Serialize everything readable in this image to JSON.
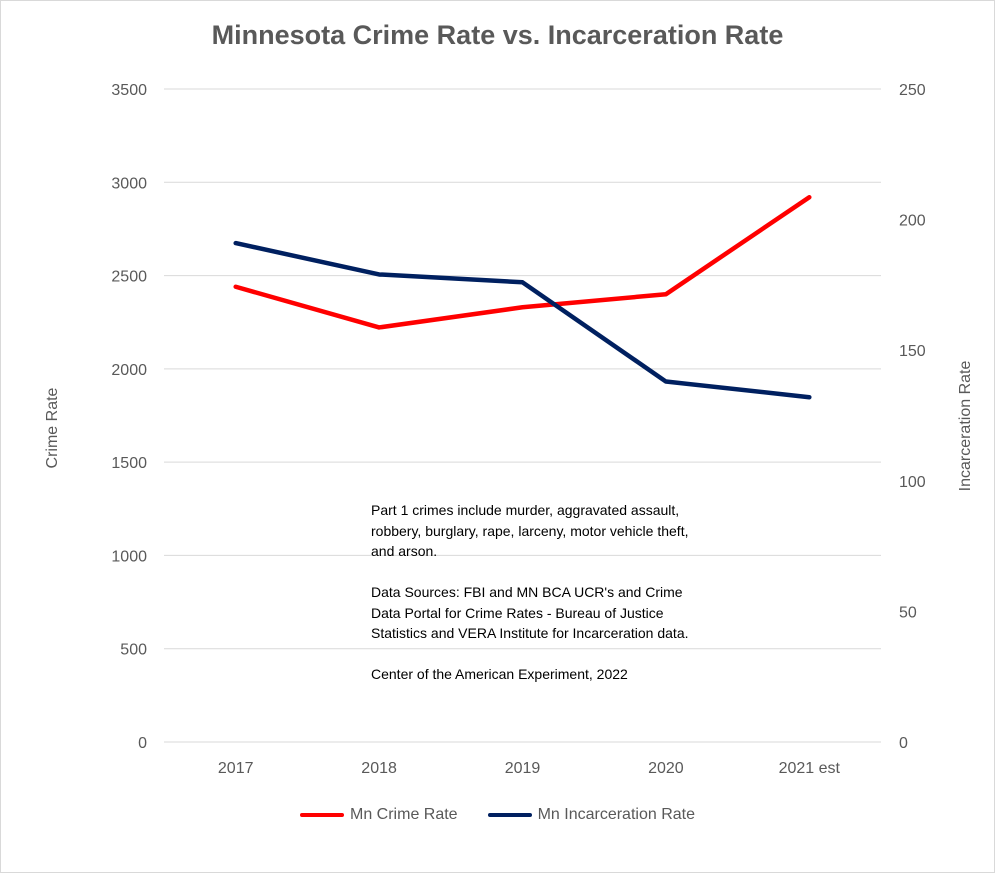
{
  "chart_data": {
    "type": "line",
    "title": "Minnesota Crime Rate vs. Incarceration Rate",
    "categories": [
      "2017",
      "2018",
      "2019",
      "2020",
      "2021 est"
    ],
    "y_left": {
      "label": "Crime Rate",
      "min": 0,
      "max": 3500,
      "ticks": [
        0,
        500,
        1000,
        1500,
        2000,
        2500,
        3000,
        3500
      ]
    },
    "y_right": {
      "label": "Incarceration Rate",
      "min": 0,
      "max": 250,
      "ticks": [
        0,
        50,
        100,
        150,
        200,
        250
      ]
    },
    "series": [
      {
        "name": "Mn Crime Rate",
        "axis": "left",
        "color": "#ff0000",
        "values": [
          2440,
          2222,
          2330,
          2400,
          2920
        ]
      },
      {
        "name": "Mn Incarceration Rate",
        "axis": "right",
        "color": "#002060",
        "values": [
          191,
          179,
          176,
          138,
          132
        ]
      }
    ],
    "grid": "horizontal",
    "legend_position": "bottom"
  },
  "annotation": {
    "paragraph1": "Part 1 crimes include murder, aggravated assault, robbery, burglary, rape, larceny, motor vehicle theft, and arson.",
    "paragraph2": "Data Sources:  FBI and MN BCA UCR's and Crime Data Portal for Crime Rates - Bureau of Justice Statistics and VERA Institute for Incarceration data.",
    "paragraph3": "Center of the American Experiment, 2022"
  }
}
